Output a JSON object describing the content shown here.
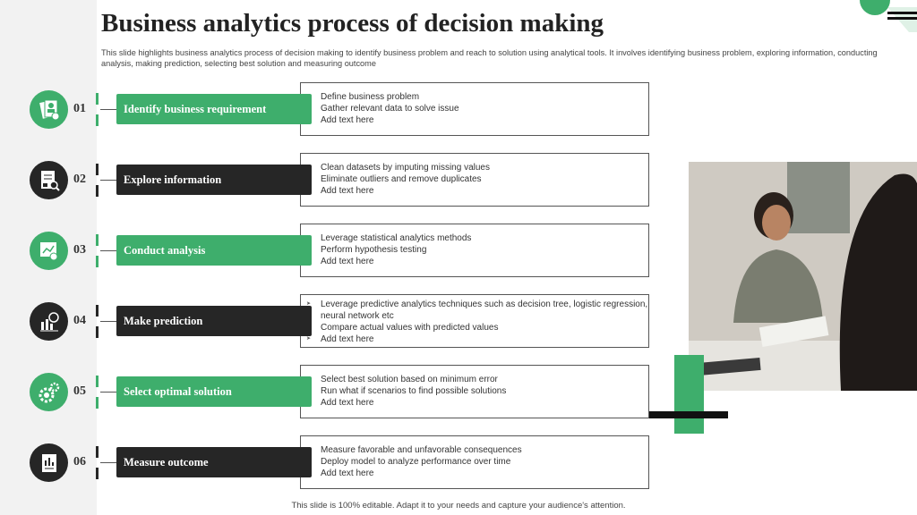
{
  "title": "Business analytics process of decision making",
  "subtitle": "This slide highlights business analytics process of decision making to identify business problem and reach to solution using analytical tools. It involves identifying business problem, exploring information, conducting analysis, making prediction, selecting best solution and measuring outcome",
  "steps": [
    {
      "num": "01",
      "label": "Identify business requirement",
      "color": "#3eae6c",
      "icon": "profile-document-icon",
      "bullets": [
        "Define business problem",
        "Gather relevant  data to solve  issue",
        "Add text here"
      ]
    },
    {
      "num": "02",
      "label": "Explore information",
      "color": "#262626",
      "icon": "document-search-icon",
      "bullets": [
        "Clean datasets by imputing missing values",
        "Eliminate outliers and remove  duplicates",
        "Add text here"
      ]
    },
    {
      "num": "03",
      "label": "Conduct  analysis",
      "color": "#3eae6c",
      "icon": "analysis-chart-icon",
      "bullets": [
        "Leverage  statistical analytics methods",
        "Perform  hypothesis testing",
        "Add text here"
      ]
    },
    {
      "num": "04",
      "label": "Make prediction",
      "color": "#262626",
      "icon": "chart-magnifier-icon",
      "bullets": [
        "Leverage  predictive  analytics  techniques  such as decision tree, logistic regression,  neural  network etc",
        "Compare  actual values  with  predicted values",
        "Add text here"
      ]
    },
    {
      "num": "05",
      "label": "Select optimal  solution",
      "color": "#3eae6c",
      "icon": "gears-icon",
      "bullets": [
        "Select best solution based on minimum error",
        "Run what if scenarios to find possible solutions",
        "Add text here"
      ]
    },
    {
      "num": "06",
      "label": "Measure outcome",
      "color": "#262626",
      "icon": "report-icon",
      "bullets": [
        "Measure favorable  and unfavorable  consequences",
        "Deploy model to analyze performance  over time",
        "Add text here"
      ]
    }
  ],
  "footer": "This slide is 100% editable. Adapt it to your needs and capture your audience's attention."
}
